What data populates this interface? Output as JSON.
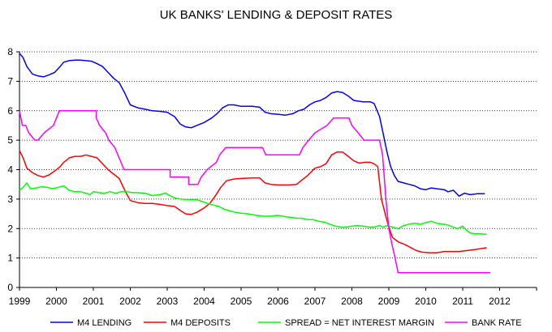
{
  "chart_data": {
    "type": "line",
    "title": "UK BANKS' LENDING & DEPOSIT RATES",
    "xlabel": "",
    "ylabel": "",
    "xlim": [
      1999,
      2013
    ],
    "ylim": [
      0,
      8
    ],
    "x_ticks": [
      "1999",
      "2000",
      "2001",
      "2002",
      "2003",
      "2004",
      "2005",
      "2006",
      "2007",
      "2008",
      "2009",
      "2010",
      "2011",
      "2012"
    ],
    "y_ticks": [
      "0",
      "1",
      "2",
      "3",
      "4",
      "5",
      "6",
      "7",
      "8"
    ],
    "grid": "horizontal dotted",
    "legend_position": "bottom",
    "series": [
      {
        "name": "M4 LENDING",
        "color": "#0000ff",
        "points": [
          [
            1999.0,
            7.95
          ],
          [
            1999.1,
            7.8
          ],
          [
            1999.2,
            7.5
          ],
          [
            1999.35,
            7.25
          ],
          [
            1999.5,
            7.18
          ],
          [
            1999.65,
            7.15
          ],
          [
            1999.8,
            7.22
          ],
          [
            1999.95,
            7.3
          ],
          [
            2000.1,
            7.5
          ],
          [
            2000.2,
            7.65
          ],
          [
            2000.35,
            7.7
          ],
          [
            2000.5,
            7.72
          ],
          [
            2000.65,
            7.72
          ],
          [
            2000.8,
            7.7
          ],
          [
            2000.95,
            7.68
          ],
          [
            2001.1,
            7.6
          ],
          [
            2001.25,
            7.5
          ],
          [
            2001.4,
            7.3
          ],
          [
            2001.55,
            7.1
          ],
          [
            2001.7,
            6.95
          ],
          [
            2001.85,
            6.6
          ],
          [
            2002.0,
            6.2
          ],
          [
            2002.2,
            6.1
          ],
          [
            2002.4,
            6.05
          ],
          [
            2002.6,
            6.0
          ],
          [
            2002.8,
            5.98
          ],
          [
            2003.0,
            5.95
          ],
          [
            2003.2,
            5.8
          ],
          [
            2003.35,
            5.55
          ],
          [
            2003.5,
            5.45
          ],
          [
            2003.65,
            5.42
          ],
          [
            2003.8,
            5.5
          ],
          [
            2004.0,
            5.6
          ],
          [
            2004.2,
            5.75
          ],
          [
            2004.35,
            5.9
          ],
          [
            2004.5,
            6.1
          ],
          [
            2004.65,
            6.2
          ],
          [
            2004.8,
            6.2
          ],
          [
            2005.0,
            6.15
          ],
          [
            2005.3,
            6.15
          ],
          [
            2005.5,
            6.12
          ],
          [
            2005.65,
            5.95
          ],
          [
            2005.8,
            5.9
          ],
          [
            2006.0,
            5.88
          ],
          [
            2006.2,
            5.85
          ],
          [
            2006.4,
            5.9
          ],
          [
            2006.55,
            6.0
          ],
          [
            2006.7,
            6.05
          ],
          [
            2006.85,
            6.2
          ],
          [
            2007.0,
            6.3
          ],
          [
            2007.15,
            6.35
          ],
          [
            2007.3,
            6.45
          ],
          [
            2007.45,
            6.6
          ],
          [
            2007.6,
            6.65
          ],
          [
            2007.75,
            6.62
          ],
          [
            2007.9,
            6.5
          ],
          [
            2008.05,
            6.35
          ],
          [
            2008.3,
            6.3
          ],
          [
            2008.5,
            6.3
          ],
          [
            2008.6,
            6.25
          ],
          [
            2008.75,
            5.8
          ],
          [
            2008.85,
            5.2
          ],
          [
            2008.95,
            4.6
          ],
          [
            2009.05,
            4.1
          ],
          [
            2009.15,
            3.8
          ],
          [
            2009.25,
            3.6
          ],
          [
            2009.4,
            3.55
          ],
          [
            2009.55,
            3.5
          ],
          [
            2009.7,
            3.45
          ],
          [
            2009.85,
            3.35
          ],
          [
            2010.0,
            3.32
          ],
          [
            2010.15,
            3.38
          ],
          [
            2010.3,
            3.35
          ],
          [
            2010.5,
            3.32
          ],
          [
            2010.6,
            3.25
          ],
          [
            2010.75,
            3.3
          ],
          [
            2010.9,
            3.1
          ],
          [
            2011.05,
            3.2
          ],
          [
            2011.2,
            3.15
          ],
          [
            2011.4,
            3.18
          ],
          [
            2011.6,
            3.18
          ]
        ]
      },
      {
        "name": "M4 DEPOSITS",
        "color": "#ff0000",
        "points": [
          [
            1999.0,
            4.65
          ],
          [
            1999.1,
            4.4
          ],
          [
            1999.2,
            4.05
          ],
          [
            1999.35,
            3.9
          ],
          [
            1999.5,
            3.8
          ],
          [
            1999.65,
            3.75
          ],
          [
            1999.8,
            3.82
          ],
          [
            1999.95,
            3.95
          ],
          [
            2000.1,
            4.1
          ],
          [
            2000.2,
            4.25
          ],
          [
            2000.35,
            4.4
          ],
          [
            2000.5,
            4.45
          ],
          [
            2000.65,
            4.45
          ],
          [
            2000.8,
            4.5
          ],
          [
            2000.95,
            4.45
          ],
          [
            2001.1,
            4.4
          ],
          [
            2001.25,
            4.2
          ],
          [
            2001.4,
            4.0
          ],
          [
            2001.55,
            3.85
          ],
          [
            2001.7,
            3.7
          ],
          [
            2001.85,
            3.3
          ],
          [
            2002.0,
            2.95
          ],
          [
            2002.2,
            2.88
          ],
          [
            2002.4,
            2.85
          ],
          [
            2002.6,
            2.85
          ],
          [
            2002.8,
            2.82
          ],
          [
            2003.0,
            2.78
          ],
          [
            2003.2,
            2.75
          ],
          [
            2003.35,
            2.62
          ],
          [
            2003.5,
            2.5
          ],
          [
            2003.65,
            2.48
          ],
          [
            2003.8,
            2.55
          ],
          [
            2004.0,
            2.7
          ],
          [
            2004.15,
            2.85
          ],
          [
            2004.3,
            3.1
          ],
          [
            2004.45,
            3.4
          ],
          [
            2004.6,
            3.62
          ],
          [
            2004.8,
            3.68
          ],
          [
            2005.0,
            3.7
          ],
          [
            2005.3,
            3.72
          ],
          [
            2005.5,
            3.72
          ],
          [
            2005.65,
            3.55
          ],
          [
            2005.8,
            3.5
          ],
          [
            2006.0,
            3.48
          ],
          [
            2006.3,
            3.48
          ],
          [
            2006.5,
            3.5
          ],
          [
            2006.65,
            3.65
          ],
          [
            2006.8,
            3.8
          ],
          [
            2007.0,
            4.05
          ],
          [
            2007.15,
            4.1
          ],
          [
            2007.3,
            4.2
          ],
          [
            2007.45,
            4.5
          ],
          [
            2007.6,
            4.6
          ],
          [
            2007.75,
            4.6
          ],
          [
            2007.9,
            4.45
          ],
          [
            2008.05,
            4.3
          ],
          [
            2008.2,
            4.22
          ],
          [
            2008.35,
            4.25
          ],
          [
            2008.5,
            4.25
          ],
          [
            2008.6,
            4.2
          ],
          [
            2008.7,
            4.1
          ],
          [
            2008.8,
            3.0
          ],
          [
            2008.9,
            2.5
          ],
          [
            2009.0,
            2.05
          ],
          [
            2009.1,
            1.7
          ],
          [
            2009.25,
            1.55
          ],
          [
            2009.45,
            1.45
          ],
          [
            2009.6,
            1.35
          ],
          [
            2009.75,
            1.25
          ],
          [
            2009.9,
            1.2
          ],
          [
            2010.1,
            1.18
          ],
          [
            2010.3,
            1.18
          ],
          [
            2010.5,
            1.22
          ],
          [
            2010.7,
            1.22
          ],
          [
            2010.9,
            1.22
          ],
          [
            2011.1,
            1.25
          ],
          [
            2011.3,
            1.28
          ],
          [
            2011.5,
            1.32
          ],
          [
            2011.65,
            1.35
          ]
        ]
      },
      {
        "name": "SPREAD = NET INTEREST MARGIN",
        "color": "#00ff00",
        "points": [
          [
            1999.0,
            3.3
          ],
          [
            1999.1,
            3.4
          ],
          [
            1999.2,
            3.55
          ],
          [
            1999.3,
            3.35
          ],
          [
            1999.45,
            3.38
          ],
          [
            1999.6,
            3.42
          ],
          [
            1999.75,
            3.4
          ],
          [
            1999.9,
            3.35
          ],
          [
            2000.05,
            3.4
          ],
          [
            2000.2,
            3.45
          ],
          [
            2000.35,
            3.3
          ],
          [
            2000.5,
            3.25
          ],
          [
            2000.65,
            3.25
          ],
          [
            2000.8,
            3.2
          ],
          [
            2000.9,
            3.15
          ],
          [
            2001.0,
            3.25
          ],
          [
            2001.15,
            3.22
          ],
          [
            2001.3,
            3.2
          ],
          [
            2001.45,
            3.25
          ],
          [
            2001.6,
            3.2
          ],
          [
            2001.75,
            3.25
          ],
          [
            2001.9,
            3.25
          ],
          [
            2002.05,
            3.22
          ],
          [
            2002.2,
            3.22
          ],
          [
            2002.4,
            3.2
          ],
          [
            2002.6,
            3.12
          ],
          [
            2002.8,
            3.15
          ],
          [
            2002.95,
            3.2
          ],
          [
            2003.1,
            3.1
          ],
          [
            2003.25,
            3.02
          ],
          [
            2003.4,
            3.0
          ],
          [
            2003.6,
            2.98
          ],
          [
            2003.8,
            2.98
          ],
          [
            2003.95,
            2.92
          ],
          [
            2004.1,
            2.85
          ],
          [
            2004.25,
            2.8
          ],
          [
            2004.4,
            2.75
          ],
          [
            2004.55,
            2.65
          ],
          [
            2004.7,
            2.6
          ],
          [
            2004.85,
            2.55
          ],
          [
            2005.0,
            2.52
          ],
          [
            2005.2,
            2.5
          ],
          [
            2005.4,
            2.45
          ],
          [
            2005.6,
            2.42
          ],
          [
            2005.8,
            2.42
          ],
          [
            2006.0,
            2.45
          ],
          [
            2006.2,
            2.4
          ],
          [
            2006.35,
            2.38
          ],
          [
            2006.5,
            2.35
          ],
          [
            2006.65,
            2.35
          ],
          [
            2006.8,
            2.3
          ],
          [
            2006.95,
            2.3
          ],
          [
            2007.1,
            2.25
          ],
          [
            2007.25,
            2.22
          ],
          [
            2007.4,
            2.15
          ],
          [
            2007.55,
            2.08
          ],
          [
            2007.7,
            2.05
          ],
          [
            2007.85,
            2.05
          ],
          [
            2008.0,
            2.08
          ],
          [
            2008.15,
            2.1
          ],
          [
            2008.3,
            2.08
          ],
          [
            2008.45,
            2.05
          ],
          [
            2008.6,
            2.05
          ],
          [
            2008.75,
            2.1
          ],
          [
            2008.85,
            2.05
          ],
          [
            2008.95,
            2.1
          ],
          [
            2009.1,
            2.05
          ],
          [
            2009.25,
            2.0
          ],
          [
            2009.4,
            2.1
          ],
          [
            2009.55,
            2.15
          ],
          [
            2009.7,
            2.18
          ],
          [
            2009.85,
            2.15
          ],
          [
            2010.0,
            2.2
          ],
          [
            2010.15,
            2.25
          ],
          [
            2010.3,
            2.18
          ],
          [
            2010.45,
            2.15
          ],
          [
            2010.6,
            2.12
          ],
          [
            2010.75,
            2.05
          ],
          [
            2010.85,
            2.0
          ],
          [
            2011.0,
            2.08
          ],
          [
            2011.1,
            1.95
          ],
          [
            2011.2,
            1.85
          ],
          [
            2011.35,
            1.82
          ],
          [
            2011.5,
            1.82
          ],
          [
            2011.65,
            1.8
          ]
        ]
      },
      {
        "name": "BANK RATE",
        "color": "#ff00ff",
        "points": [
          [
            1999.0,
            6.0
          ],
          [
            1999.08,
            5.5
          ],
          [
            1999.17,
            5.5
          ],
          [
            1999.25,
            5.25
          ],
          [
            1999.42,
            5.0
          ],
          [
            1999.5,
            5.0
          ],
          [
            1999.67,
            5.25
          ],
          [
            1999.92,
            5.5
          ],
          [
            2000.0,
            5.75
          ],
          [
            2000.08,
            6.0
          ],
          [
            2000.17,
            6.0
          ],
          [
            2001.08,
            6.0
          ],
          [
            2001.08,
            5.75
          ],
          [
            2001.17,
            5.5
          ],
          [
            2001.33,
            5.25
          ],
          [
            2001.42,
            5.0
          ],
          [
            2001.58,
            4.75
          ],
          [
            2001.75,
            4.25
          ],
          [
            2001.83,
            4.0
          ],
          [
            2003.08,
            4.0
          ],
          [
            2003.08,
            3.75
          ],
          [
            2003.58,
            3.75
          ],
          [
            2003.58,
            3.5
          ],
          [
            2003.83,
            3.5
          ],
          [
            2003.92,
            3.75
          ],
          [
            2004.08,
            4.0
          ],
          [
            2004.33,
            4.25
          ],
          [
            2004.42,
            4.5
          ],
          [
            2004.58,
            4.75
          ],
          [
            2005.58,
            4.75
          ],
          [
            2005.67,
            4.5
          ],
          [
            2006.58,
            4.5
          ],
          [
            2006.67,
            4.75
          ],
          [
            2006.83,
            5.0
          ],
          [
            2007.0,
            5.25
          ],
          [
            2007.33,
            5.5
          ],
          [
            2007.5,
            5.75
          ],
          [
            2007.92,
            5.75
          ],
          [
            2008.0,
            5.5
          ],
          [
            2008.17,
            5.25
          ],
          [
            2008.33,
            5.0
          ],
          [
            2008.75,
            5.0
          ],
          [
            2008.83,
            4.5
          ],
          [
            2008.92,
            3.0
          ],
          [
            2009.0,
            2.0
          ],
          [
            2009.08,
            1.5
          ],
          [
            2009.17,
            1.0
          ],
          [
            2009.25,
            0.5
          ],
          [
            2011.75,
            0.5
          ]
        ]
      }
    ]
  }
}
